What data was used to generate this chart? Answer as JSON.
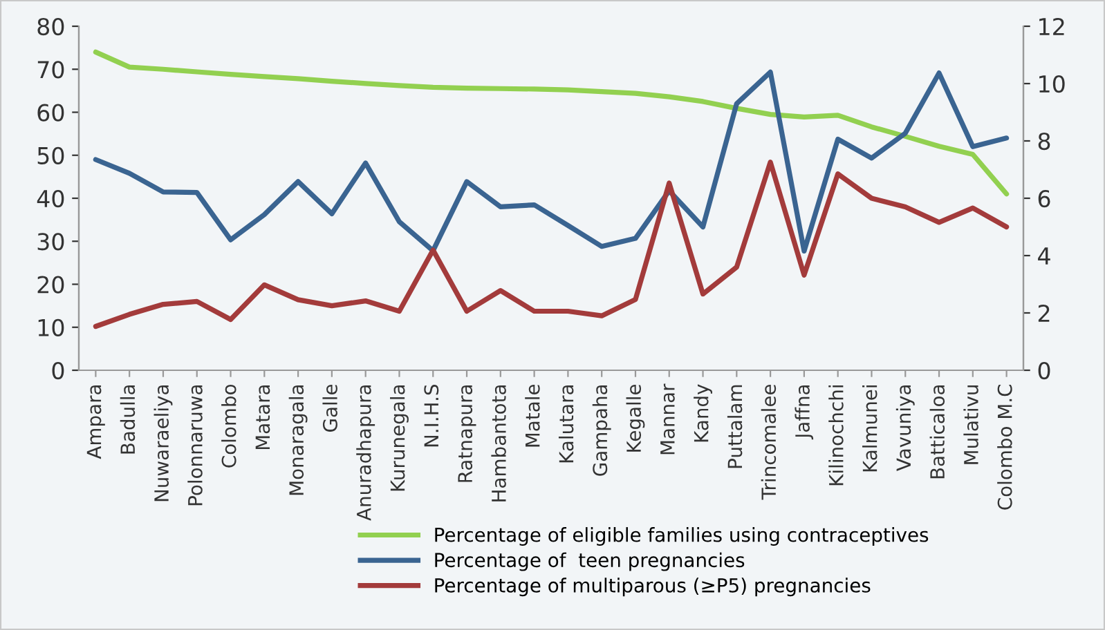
{
  "chart_data": {
    "type": "line",
    "categories": [
      "Ampara",
      "Badulla",
      "Nuwaraeliya",
      "Polonnaruwa",
      "Colombo",
      "Matara",
      "Monaragala",
      "Galle",
      "Anuradhapura",
      "Kurunegala",
      "N.I.H.S",
      "Ratnapura",
      "Hambantota",
      "Matale",
      "Kalutara",
      "Gampaha",
      "Kegalle",
      "Mannar",
      "Kandy",
      "Puttalam",
      "Trincomalee",
      "Jaffna",
      "Kilinochchi",
      "Kalmunei",
      "Vavuniya",
      "Batticaloa",
      "Mulativu",
      "Colombo M.C"
    ],
    "series": [
      {
        "name": "Percentage of eligible families using contraceptives",
        "color": "#92d050",
        "values": [
          74,
          70.5,
          70,
          69.4,
          68.8,
          68.3,
          67.8,
          67.2,
          66.7,
          66.2,
          65.8,
          65.6,
          65.5,
          65.4,
          65.2,
          64.8,
          64.4,
          63.6,
          62.5,
          60.9,
          59.5,
          58.9,
          59.3,
          56.6,
          54.4,
          52.1,
          50.2,
          41
        ]
      },
      {
        "name": "Percentage of  teen pregnancies",
        "color": "#3a6491",
        "axis": "y2",
        "values": [
          7.35,
          6.87,
          6.22,
          6.2,
          4.55,
          5.43,
          6.58,
          5.46,
          7.23,
          5.18,
          4.17,
          6.58,
          5.7,
          5.77,
          5.05,
          4.32,
          4.6,
          6.26,
          5.0,
          9.3,
          10.4,
          4.16,
          8.06,
          7.4,
          8.27,
          10.37,
          7.8,
          8.1
        ]
      },
      {
        "name": "Percentage of multiparous (≥P5) pregnancies",
        "color": "#a33b3b",
        "axis": "y2",
        "values": [
          1.53,
          1.95,
          2.3,
          2.4,
          1.77,
          2.98,
          2.46,
          2.25,
          2.42,
          2.06,
          4.19,
          2.06,
          2.78,
          2.06,
          2.06,
          1.9,
          2.47,
          6.53,
          2.66,
          3.6,
          7.26,
          3.32,
          6.85,
          6.0,
          5.7,
          5.16,
          5.66,
          5.0
        ]
      }
    ],
    "ylim": [
      0,
      80
    ],
    "yticks": [
      0,
      10,
      20,
      30,
      40,
      50,
      60,
      70,
      80
    ],
    "y2lim": [
      0,
      12
    ],
    "y2ticks": [
      0,
      2,
      4,
      6,
      8,
      10,
      12
    ],
    "grid": false,
    "legend": "bottom",
    "marker": "none",
    "line_style": "solid"
  }
}
